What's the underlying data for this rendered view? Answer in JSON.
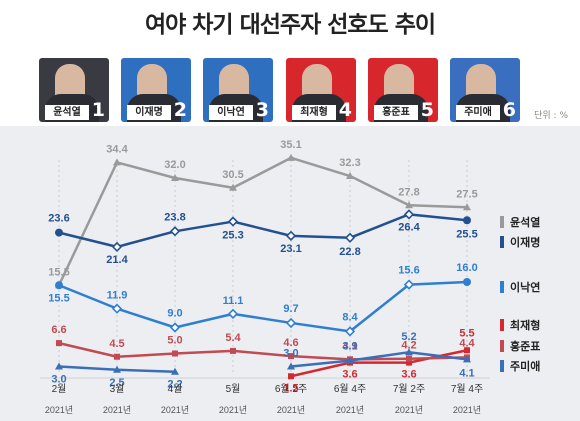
{
  "title": "여야 차기 대선주자 선호도 추이",
  "unit": "단위 : %",
  "candidates": [
    {
      "name": "윤석열",
      "num": "1",
      "bg": "#3a3a42"
    },
    {
      "name": "이재명",
      "num": "2",
      "bg": "#2f6fbf"
    },
    {
      "name": "이낙연",
      "num": "3",
      "bg": "#2f6fbf"
    },
    {
      "name": "최재형",
      "num": "4",
      "bg": "#d8262d"
    },
    {
      "name": "홍준표",
      "num": "5",
      "bg": "#d8262d"
    },
    {
      "name": "주미애",
      "num": "6",
      "bg": "#3a6fc0"
    }
  ],
  "chart_data": {
    "type": "line",
    "title": "여야 차기 대선주자 선호도 추이",
    "categories": [
      "2월",
      "3월",
      "4월",
      "5월",
      "6월 2주",
      "6월 4주",
      "7월 2주",
      "7월 4주"
    ],
    "category_sub": [
      "2021년",
      "2021년",
      "2021년",
      "2021년",
      "2021년",
      "2021년",
      "2021년",
      "2021년"
    ],
    "legend_position": "right",
    "series": [
      {
        "name": "윤석열",
        "color": "#9a9a9a",
        "values": [
          15.5,
          34.4,
          32.0,
          30.5,
          35.1,
          32.3,
          27.8,
          27.5
        ]
      },
      {
        "name": "이재명",
        "color": "#23508f",
        "values": [
          23.6,
          21.4,
          23.8,
          25.3,
          23.1,
          22.8,
          26.4,
          25.5
        ]
      },
      {
        "name": "이낙연",
        "color": "#2f7fd0",
        "values": [
          15.5,
          11.9,
          9.0,
          11.1,
          9.7,
          8.4,
          15.6,
          16.0
        ]
      },
      {
        "name": "최재형",
        "color": "#d22a2f",
        "values": [
          null,
          null,
          null,
          null,
          1.5,
          3.6,
          3.6,
          5.5
        ]
      },
      {
        "name": "홍준표",
        "color": "#c24a52",
        "values": [
          6.6,
          4.5,
          5.0,
          5.4,
          4.6,
          4.1,
          4.2,
          4.4
        ]
      },
      {
        "name": "주미애",
        "color": "#3a6fb8",
        "values": [
          3.0,
          2.5,
          2.2,
          null,
          3.0,
          3.9,
          5.2,
          4.1
        ]
      }
    ]
  }
}
